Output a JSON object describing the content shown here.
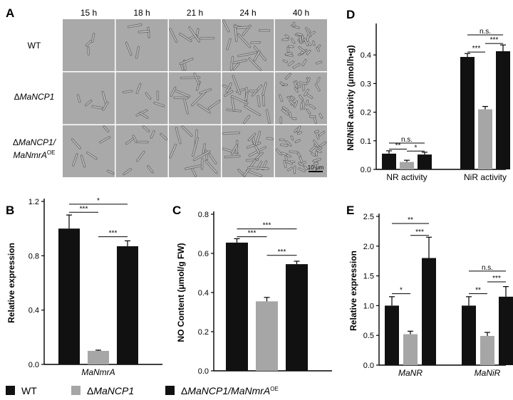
{
  "colors": {
    "wt": "#111111",
    "ko": "#a6a6a6",
    "oe": "#111111",
    "micro_bg": "#a9a9a9"
  },
  "panelA": {
    "label": "A",
    "times": [
      "15 h",
      "18 h",
      "21 h",
      "24 h",
      "40 h"
    ],
    "rows": [
      {
        "main": "WT",
        "sup": ""
      },
      {
        "main": "ΔMaNCP1",
        "sup": ""
      },
      {
        "main": "ΔMaNCP1/ MaNmrA",
        "sup": "OE"
      }
    ],
    "scalebar": "10 μm"
  },
  "legend": [
    {
      "main": "WT",
      "sup": "",
      "color": "#111111"
    },
    {
      "main": "ΔMaNCP1",
      "sup": "",
      "color": "#a6a6a6"
    },
    {
      "main": "ΔMaNCP1/MaNmrA",
      "sup": "OE",
      "color": "#111111"
    }
  ],
  "chart_data": [
    {
      "panel": "B",
      "type": "bar",
      "categories": [
        "MaNmrA"
      ],
      "series": [
        {
          "name": "WT",
          "values": [
            1.0
          ],
          "errors": [
            0.1
          ]
        },
        {
          "name": "ΔMaNCP1",
          "values": [
            0.1
          ],
          "errors": [
            0.005
          ]
        },
        {
          "name": "ΔMaNCP1/MaNmrA OE",
          "values": [
            0.87
          ],
          "errors": [
            0.04
          ]
        }
      ],
      "ylabel": "Relative expression",
      "ylim": [
        0,
        1.2
      ],
      "yticks": [
        "0.0",
        "0.4",
        "0.8",
        "1.2"
      ],
      "significance": [
        {
          "from": 0,
          "to": 1,
          "label": "***",
          "y": 1.12
        },
        {
          "from": 0,
          "to": 2,
          "label": "*",
          "y": 1.18
        },
        {
          "from": 1,
          "to": 2,
          "label": "***",
          "y": 0.94
        }
      ]
    },
    {
      "panel": "C",
      "type": "bar",
      "categories": [
        ""
      ],
      "series": [
        {
          "name": "WT",
          "values": [
            0.655
          ],
          "errors": [
            0.02
          ]
        },
        {
          "name": "ΔMaNCP1",
          "values": [
            0.355
          ],
          "errors": [
            0.02
          ]
        },
        {
          "name": "ΔMaNCP1/MaNmrA OE",
          "values": [
            0.545
          ],
          "errors": [
            0.015
          ]
        }
      ],
      "ylabel": "NO Content (μmol/g FW)",
      "ylim": [
        0,
        0.8
      ],
      "yticks": [
        "0.0",
        "0.2",
        "0.4",
        "0.6",
        "0.8"
      ],
      "significance": [
        {
          "from": 0,
          "to": 1,
          "label": "***",
          "y": 0.685
        },
        {
          "from": 0,
          "to": 2,
          "label": "***",
          "y": 0.725
        },
        {
          "from": 1,
          "to": 2,
          "label": "***",
          "y": 0.59
        }
      ]
    },
    {
      "panel": "D",
      "type": "bar",
      "categories": [
        "NR activity",
        "NiR activity"
      ],
      "series": [
        {
          "name": "WT",
          "values": [
            0.055,
            0.393
          ],
          "errors": [
            0.01,
            0.012
          ]
        },
        {
          "name": "ΔMaNCP1",
          "values": [
            0.026,
            0.21
          ],
          "errors": [
            0.006,
            0.01
          ]
        },
        {
          "name": "ΔMaNCP1/MaNmrA OE",
          "values": [
            0.052,
            0.413
          ],
          "errors": [
            0.008,
            0.022
          ]
        }
      ],
      "ylabel": "NR/NiR activity (μmol/h•g)",
      "ylim": [
        0,
        0.5
      ],
      "yticks": [
        "0.0",
        "0.1",
        "0.2",
        "0.3",
        "0.4"
      ],
      "significance": [
        {
          "group": 0,
          "from": 0,
          "to": 1,
          "label": "**",
          "y": 0.071
        },
        {
          "group": 0,
          "from": 1,
          "to": 2,
          "label": "*",
          "y": 0.064
        },
        {
          "group": 0,
          "from": 0,
          "to": 2,
          "label": "n.s.",
          "y": 0.092
        },
        {
          "group": 1,
          "from": 0,
          "to": 1,
          "label": "***",
          "y": 0.41
        },
        {
          "group": 1,
          "from": 1,
          "to": 2,
          "label": "***",
          "y": 0.44
        },
        {
          "group": 1,
          "from": 0,
          "to": 2,
          "label": "n.s.",
          "y": 0.47
        }
      ]
    },
    {
      "panel": "E",
      "type": "bar",
      "categories": [
        "MaNR",
        "MaNiR"
      ],
      "series": [
        {
          "name": "WT",
          "values": [
            1.0,
            1.0
          ],
          "errors": [
            0.15,
            0.15
          ]
        },
        {
          "name": "ΔMaNCP1",
          "values": [
            0.52,
            0.49
          ],
          "errors": [
            0.05,
            0.06
          ]
        },
        {
          "name": "ΔMaNCP1/MaNmrA OE",
          "values": [
            1.8,
            1.15
          ],
          "errors": [
            0.35,
            0.17
          ]
        }
      ],
      "ylabel": "Relative expression",
      "ylim": [
        0,
        2.5
      ],
      "yticks": [
        "0.0",
        "0.5",
        "1.0",
        "1.5",
        "2.0",
        "2.5"
      ],
      "significance": [
        {
          "group": 0,
          "from": 0,
          "to": 1,
          "label": "*",
          "y": 1.2
        },
        {
          "group": 0,
          "from": 1,
          "to": 2,
          "label": "***",
          "y": 2.18
        },
        {
          "group": 0,
          "from": 0,
          "to": 2,
          "label": "**",
          "y": 2.38
        },
        {
          "group": 1,
          "from": 0,
          "to": 1,
          "label": "**",
          "y": 1.2
        },
        {
          "group": 1,
          "from": 1,
          "to": 2,
          "label": "***",
          "y": 1.4
        },
        {
          "group": 1,
          "from": 0,
          "to": 2,
          "label": "n.s.",
          "y": 1.58
        }
      ]
    }
  ]
}
